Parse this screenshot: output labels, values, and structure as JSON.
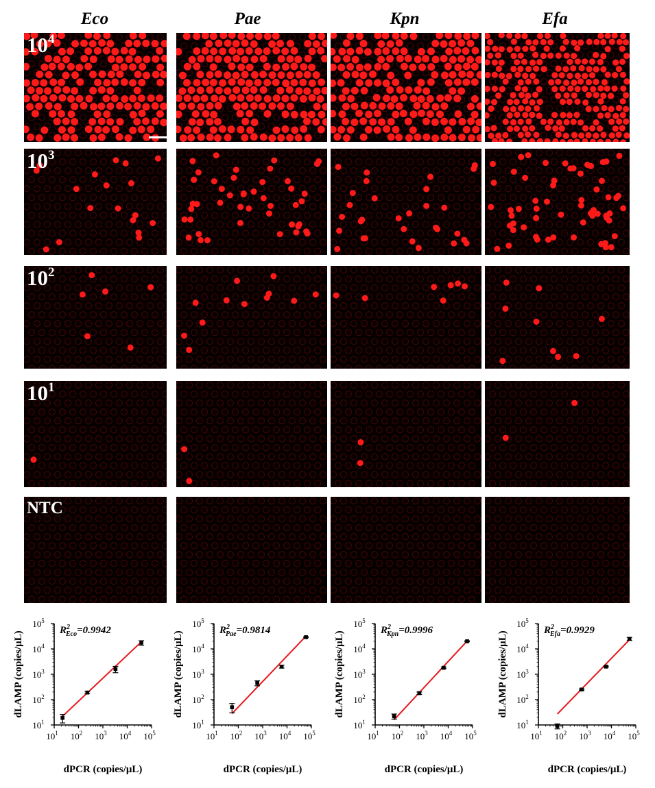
{
  "columns": [
    "Eco",
    "Pae",
    "Kpn",
    "Efa"
  ],
  "rows": [
    {
      "key": "r4",
      "base": "10",
      "exp": "4",
      "density": "saturated"
    },
    {
      "key": "r3",
      "base": "10",
      "exp": "3",
      "density": "medium"
    },
    {
      "key": "r2",
      "base": "10",
      "exp": "2",
      "density": "sparse"
    },
    {
      "key": "r1",
      "base": "10",
      "exp": "1",
      "density": "very-sparse"
    },
    {
      "key": "ntc",
      "base": "NTC",
      "exp": "",
      "density": "none"
    }
  ],
  "colors": {
    "droplet": "#ff1a1a",
    "background": "#060000",
    "fit_line": "#e8161b"
  },
  "chart_data": [
    {
      "type": "scatter",
      "name": "Eco",
      "r2_label": "R",
      "r2_sup": "2",
      "r2_sub": "Eco",
      "r2_value": "=0.9942",
      "xlabel": "dPCR (copies/μL)",
      "ylabel": "dLAMP (copies/μL)",
      "xscale": "log",
      "yscale": "log",
      "xlim": [
        10,
        100000
      ],
      "ylim": [
        10,
        100000
      ],
      "xticks": [
        "10",
        "10",
        "10",
        "10",
        "10"
      ],
      "xtick_exp": [
        "1",
        "2",
        "3",
        "4",
        "5"
      ],
      "yticks": [
        "10",
        "10",
        "10",
        "10",
        "10"
      ],
      "ytick_exp": [
        "1",
        "2",
        "3",
        "4",
        "5"
      ],
      "points": [
        {
          "x": 22,
          "y": 19,
          "err": 7
        },
        {
          "x": 230,
          "y": 190,
          "err": 20
        },
        {
          "x": 3300,
          "y": 1600,
          "err": 450
        },
        {
          "x": 38000,
          "y": 17500,
          "err": 3500
        }
      ],
      "fit": {
        "x": [
          22,
          38000
        ],
        "y": [
          22,
          19000
        ]
      }
    },
    {
      "type": "scatter",
      "name": "Pae",
      "r2_label": "R",
      "r2_sup": "2",
      "r2_sub": "Pae",
      "r2_value": "=0.9814",
      "xlabel": "dPCR (copies/μL)",
      "ylabel": "dLAMP (copies/μL)",
      "xscale": "log",
      "yscale": "log",
      "xlim": [
        10,
        100000
      ],
      "ylim": [
        10,
        100000
      ],
      "xticks": [
        "10",
        "10",
        "10",
        "10",
        "10"
      ],
      "xtick_exp": [
        "1",
        "2",
        "3",
        "4",
        "5"
      ],
      "yticks": [
        "10",
        "10",
        "10",
        "10",
        "10"
      ],
      "ytick_exp": [
        "1",
        "2",
        "3",
        "4",
        "5"
      ],
      "points": [
        {
          "x": 55,
          "y": 50,
          "err": 20
        },
        {
          "x": 600,
          "y": 450,
          "err": 100
        },
        {
          "x": 6000,
          "y": 2000,
          "err": 250
        },
        {
          "x": 60000,
          "y": 29000,
          "err": 1500
        }
      ],
      "fit": {
        "x": [
          55,
          60000
        ],
        "y": [
          28,
          32000
        ]
      }
    },
    {
      "type": "scatter",
      "name": "Kpn",
      "r2_label": "R",
      "r2_sup": "2",
      "r2_sub": "Kpn",
      "r2_value": "=0.9996",
      "xlabel": "dPCR (copies/μL)",
      "ylabel": "dLAMP (copies/μL)",
      "xscale": "log",
      "yscale": "log",
      "xlim": [
        10,
        100000
      ],
      "ylim": [
        10,
        100000
      ],
      "xticks": [
        "10",
        "10",
        "10",
        "10",
        "10"
      ],
      "xtick_exp": [
        "1",
        "2",
        "3",
        "4",
        "5"
      ],
      "yticks": [
        "10",
        "10",
        "10",
        "10",
        "10"
      ],
      "ytick_exp": [
        "1",
        "2",
        "3",
        "4",
        "5"
      ],
      "points": [
        {
          "x": 60,
          "y": 22,
          "err": 5
        },
        {
          "x": 650,
          "y": 180,
          "err": 20
        },
        {
          "x": 6500,
          "y": 1800,
          "err": 120
        },
        {
          "x": 60000,
          "y": 20000,
          "err": 1000
        }
      ],
      "fit": {
        "x": [
          60,
          60000
        ],
        "y": [
          16,
          20500
        ]
      }
    },
    {
      "type": "scatter",
      "name": "Efa",
      "r2_label": "R",
      "r2_sup": "2",
      "r2_sub": "Efa",
      "r2_value": "=0.9929",
      "xlabel": "dPCR (copies/μL)",
      "ylabel": "dLAMP (copies/μL)",
      "xscale": "log",
      "yscale": "log",
      "xlim": [
        10,
        100000
      ],
      "ylim": [
        10,
        100000
      ],
      "xticks": [
        "10",
        "10",
        "10",
        "10",
        "10"
      ],
      "xtick_exp": [
        "1",
        "2",
        "3",
        "4",
        "5"
      ],
      "yticks": [
        "10",
        "10",
        "10",
        "10",
        "10"
      ],
      "ytick_exp": [
        "1",
        "2",
        "3",
        "4",
        "5"
      ],
      "points": [
        {
          "x": 60,
          "y": 9,
          "err": 2
        },
        {
          "x": 600,
          "y": 250,
          "err": 15
        },
        {
          "x": 6000,
          "y": 2000,
          "err": 100
        },
        {
          "x": 55000,
          "y": 25000,
          "err": 3500
        }
      ],
      "fit": {
        "x": [
          60,
          55000
        ],
        "y": [
          27,
          23000
        ]
      }
    }
  ]
}
